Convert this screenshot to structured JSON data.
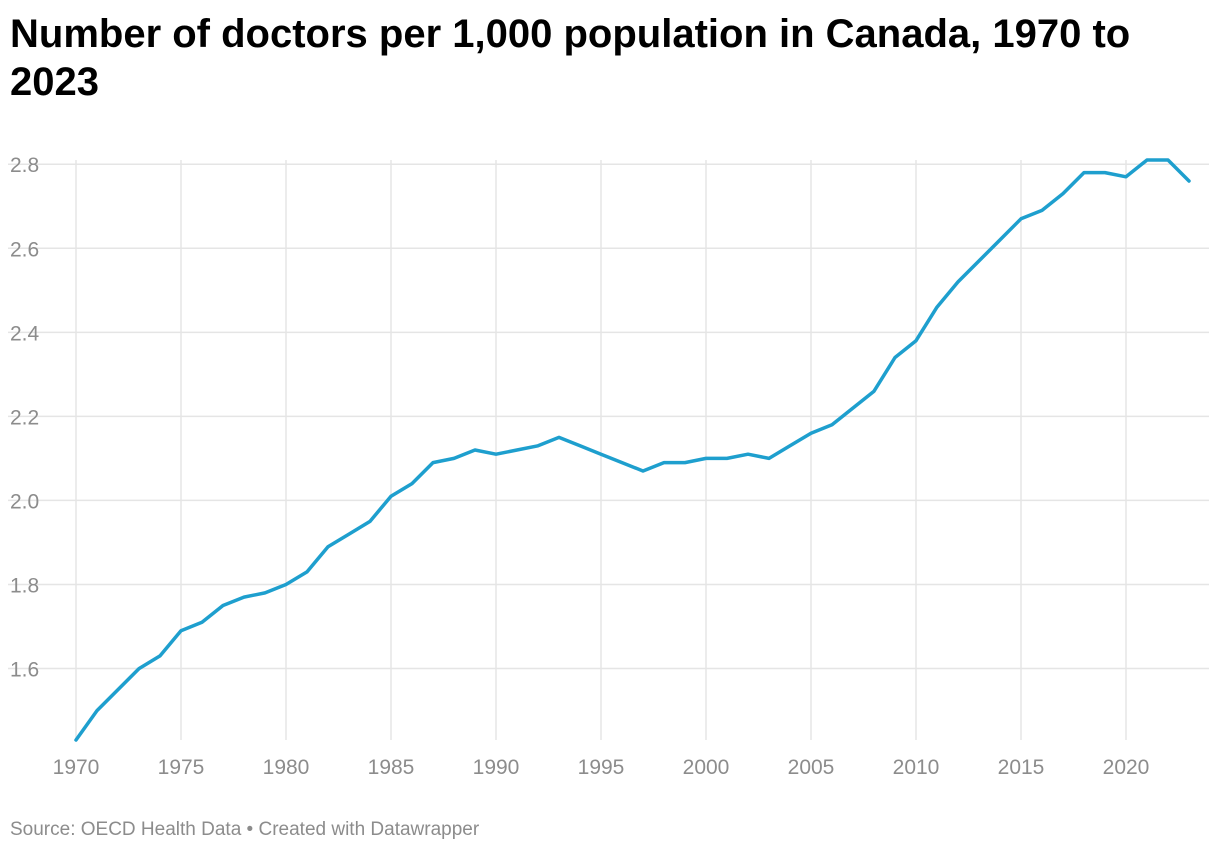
{
  "title": "Number of doctors per 1,000 population in Canada, 1970 to 2023",
  "footer": {
    "source": "Source: OECD Health Data",
    "separator": "•",
    "credit": "Created with Datawrapper"
  },
  "chart_data": {
    "type": "line",
    "title": "Number of doctors per 1,000 population in Canada, 1970 to 2023",
    "xlabel": "",
    "ylabel": "",
    "xlim": [
      1970,
      2023
    ],
    "ylim": [
      1.43,
      2.81
    ],
    "x_ticks": [
      1970,
      1975,
      1980,
      1985,
      1990,
      1995,
      2000,
      2005,
      2010,
      2015,
      2020
    ],
    "y_ticks": [
      "1.6",
      "1.8",
      "2.0",
      "2.2",
      "2.4",
      "2.6",
      "2.8"
    ],
    "grid": true,
    "line_color": "#1e9fce",
    "grid_color": "#e5e5e5",
    "series": [
      {
        "x": [
          1970,
          1971,
          1972,
          1973,
          1974,
          1975,
          1976,
          1977,
          1978,
          1979,
          1980,
          1981,
          1982,
          1983,
          1984,
          1985,
          1986,
          1987,
          1988,
          1989,
          1990,
          1991,
          1992,
          1993,
          1994,
          1995,
          1996,
          1997,
          1998,
          1999,
          2000,
          2001,
          2002,
          2003,
          2004,
          2005,
          2006,
          2007,
          2008,
          2009,
          2010,
          2011,
          2012,
          2013,
          2014,
          2015,
          2016,
          2017,
          2018,
          2019,
          2020,
          2021,
          2022,
          2023
        ],
        "values": [
          1.43,
          1.5,
          1.55,
          1.6,
          1.63,
          1.69,
          1.71,
          1.75,
          1.77,
          1.78,
          1.8,
          1.83,
          1.89,
          1.92,
          1.95,
          2.01,
          2.04,
          2.09,
          2.1,
          2.12,
          2.11,
          2.12,
          2.13,
          2.15,
          2.13,
          2.11,
          2.09,
          2.07,
          2.09,
          2.09,
          2.1,
          2.1,
          2.11,
          2.1,
          2.13,
          2.16,
          2.18,
          2.22,
          2.26,
          2.34,
          2.38,
          2.46,
          2.52,
          2.57,
          2.62,
          2.67,
          2.69,
          2.73,
          2.78,
          2.78,
          2.77,
          2.81,
          2.81,
          2.76
        ]
      }
    ]
  }
}
